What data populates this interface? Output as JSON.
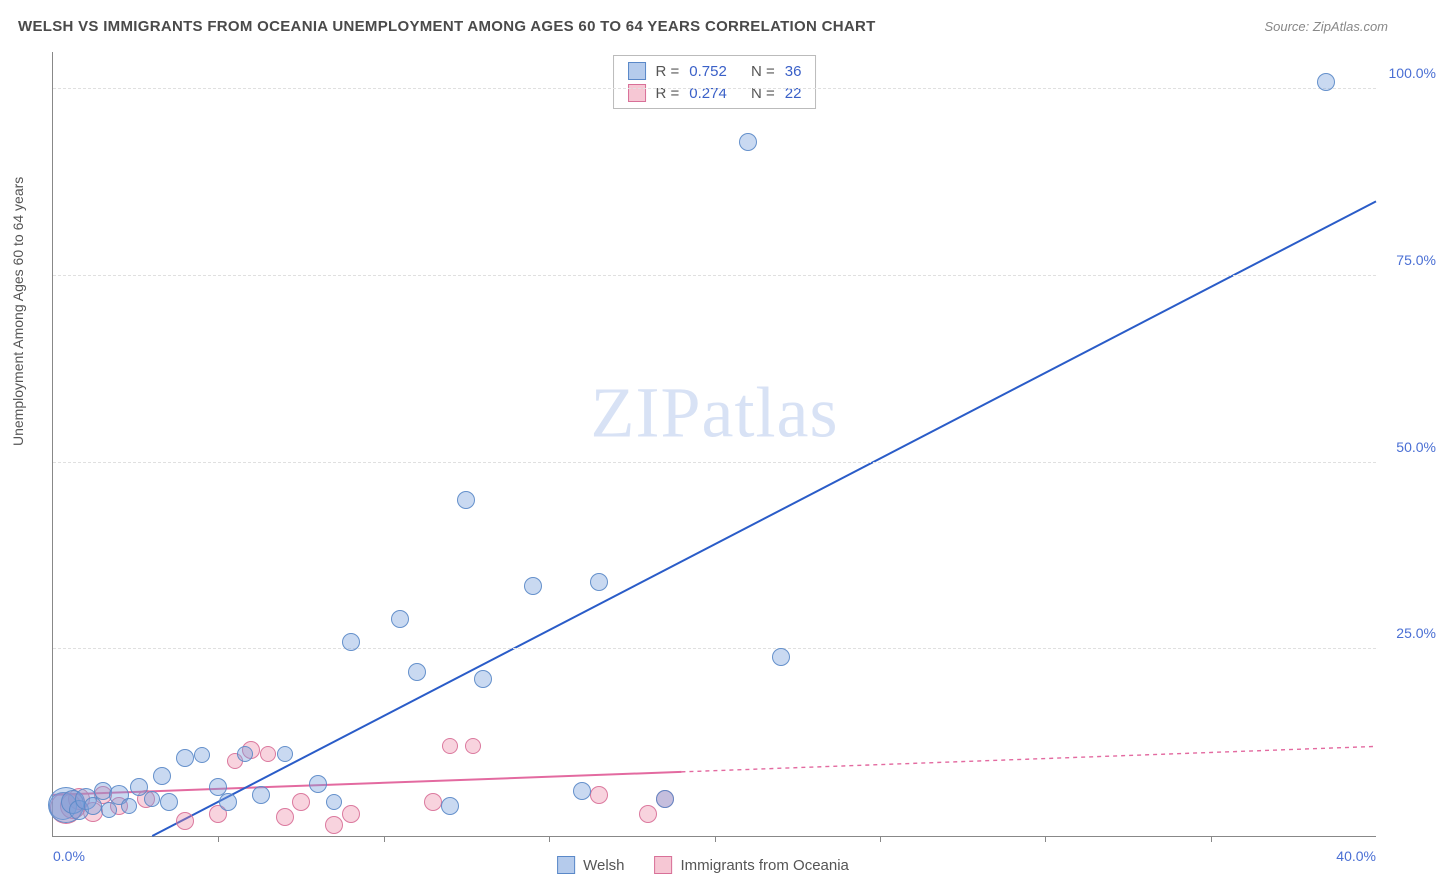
{
  "title": "WELSH VS IMMIGRANTS FROM OCEANIA UNEMPLOYMENT AMONG AGES 60 TO 64 YEARS CORRELATION CHART",
  "source": "Source: ZipAtlas.com",
  "watermark": {
    "zip": "ZIP",
    "atlas": "atlas"
  },
  "y_label": "Unemployment Among Ages 60 to 64 years",
  "chart": {
    "type": "scatter-with-regression",
    "xlim": [
      0,
      40
    ],
    "ylim": [
      0,
      105
    ],
    "x_ticks_labeled": [
      {
        "v": 0,
        "label": "0.0%"
      },
      {
        "v": 40,
        "label": "40.0%"
      }
    ],
    "x_tick_marks": [
      5,
      10,
      15,
      20,
      25,
      30,
      35
    ],
    "y_ticks": [
      {
        "v": 25,
        "label": "25.0%"
      },
      {
        "v": 50,
        "label": "50.0%"
      },
      {
        "v": 75,
        "label": "75.0%"
      },
      {
        "v": 100,
        "label": "100.0%"
      }
    ],
    "grid_color": "#e0e0e0",
    "background_color": "#ffffff",
    "axis_color": "#888888",
    "label_color": "#4a6fd4"
  },
  "series": {
    "welsh": {
      "label": "Welsh",
      "color_fill": "rgba(120,160,220,0.40)",
      "color_stroke": "#5a88c8",
      "R": "0.752",
      "N": "36",
      "regression": {
        "x1": 3.0,
        "y1": 0,
        "x2": 40,
        "y2": 85,
        "color": "#2a5cc8",
        "width": 2,
        "dash_after_x": null
      },
      "points": [
        {
          "x": 0.3,
          "y": 4.0,
          "r": 14
        },
        {
          "x": 0.4,
          "y": 4.2,
          "r": 18
        },
        {
          "x": 0.6,
          "y": 4.5,
          "r": 12
        },
        {
          "x": 0.8,
          "y": 3.5,
          "r": 10
        },
        {
          "x": 1.0,
          "y": 5.0,
          "r": 11
        },
        {
          "x": 1.2,
          "y": 4.0,
          "r": 9
        },
        {
          "x": 1.5,
          "y": 6.0,
          "r": 9
        },
        {
          "x": 1.7,
          "y": 3.5,
          "r": 8
        },
        {
          "x": 2.0,
          "y": 5.5,
          "r": 10
        },
        {
          "x": 2.3,
          "y": 4.0,
          "r": 8
        },
        {
          "x": 2.6,
          "y": 6.5,
          "r": 9
        },
        {
          "x": 3.0,
          "y": 5.0,
          "r": 8
        },
        {
          "x": 3.3,
          "y": 8.0,
          "r": 9
        },
        {
          "x": 3.5,
          "y": 4.5,
          "r": 9
        },
        {
          "x": 4.0,
          "y": 10.5,
          "r": 9
        },
        {
          "x": 4.5,
          "y": 10.8,
          "r": 8
        },
        {
          "x": 5.0,
          "y": 6.5,
          "r": 9
        },
        {
          "x": 5.3,
          "y": 4.5,
          "r": 9
        },
        {
          "x": 5.8,
          "y": 11.0,
          "r": 8
        },
        {
          "x": 6.3,
          "y": 5.5,
          "r": 9
        },
        {
          "x": 7.0,
          "y": 11.0,
          "r": 8
        },
        {
          "x": 8.0,
          "y": 7.0,
          "r": 9
        },
        {
          "x": 8.5,
          "y": 4.5,
          "r": 8
        },
        {
          "x": 9.0,
          "y": 26.0,
          "r": 9
        },
        {
          "x": 10.5,
          "y": 29.0,
          "r": 9
        },
        {
          "x": 11.0,
          "y": 22.0,
          "r": 9
        },
        {
          "x": 12.0,
          "y": 4.0,
          "r": 9
        },
        {
          "x": 12.5,
          "y": 45.0,
          "r": 9
        },
        {
          "x": 13.0,
          "y": 21.0,
          "r": 9
        },
        {
          "x": 14.5,
          "y": 33.5,
          "r": 9
        },
        {
          "x": 16.0,
          "y": 6.0,
          "r": 9
        },
        {
          "x": 16.5,
          "y": 34.0,
          "r": 9
        },
        {
          "x": 18.5,
          "y": 5.0,
          "r": 9
        },
        {
          "x": 21.0,
          "y": 93.0,
          "r": 9
        },
        {
          "x": 22.0,
          "y": 24.0,
          "r": 9
        },
        {
          "x": 38.5,
          "y": 101.0,
          "r": 9
        }
      ]
    },
    "oceania": {
      "label": "Immigrants from Oceania",
      "color_fill": "rgba(235,130,160,0.35)",
      "color_stroke": "#d87098",
      "R": "0.274",
      "N": "22",
      "regression": {
        "x1": 0,
        "y1": 5.5,
        "x2": 40,
        "y2": 12.0,
        "color": "#e36aa0",
        "width": 2,
        "dash_after_x": 19
      },
      "points": [
        {
          "x": 0.4,
          "y": 3.8,
          "r": 16
        },
        {
          "x": 0.6,
          "y": 4.0,
          "r": 13
        },
        {
          "x": 0.8,
          "y": 5.0,
          "r": 11
        },
        {
          "x": 1.2,
          "y": 3.2,
          "r": 10
        },
        {
          "x": 1.5,
          "y": 5.5,
          "r": 9
        },
        {
          "x": 2.0,
          "y": 4.0,
          "r": 9
        },
        {
          "x": 2.8,
          "y": 5.0,
          "r": 9
        },
        {
          "x": 4.0,
          "y": 2.0,
          "r": 9
        },
        {
          "x": 5.0,
          "y": 3.0,
          "r": 9
        },
        {
          "x": 5.5,
          "y": 10.0,
          "r": 8
        },
        {
          "x": 6.0,
          "y": 11.5,
          "r": 9
        },
        {
          "x": 6.5,
          "y": 11.0,
          "r": 8
        },
        {
          "x": 7.0,
          "y": 2.5,
          "r": 9
        },
        {
          "x": 7.5,
          "y": 4.5,
          "r": 9
        },
        {
          "x": 8.5,
          "y": 1.5,
          "r": 9
        },
        {
          "x": 9.0,
          "y": 3.0,
          "r": 9
        },
        {
          "x": 11.5,
          "y": 4.5,
          "r": 9
        },
        {
          "x": 12.0,
          "y": 12.0,
          "r": 8
        },
        {
          "x": 12.7,
          "y": 12.0,
          "r": 8
        },
        {
          "x": 16.5,
          "y": 5.5,
          "r": 9
        },
        {
          "x": 18.0,
          "y": 3.0,
          "r": 9
        },
        {
          "x": 18.5,
          "y": 5.0,
          "r": 9
        }
      ]
    }
  },
  "legend_top": {
    "r_label": "R =",
    "n_label": "N ="
  }
}
